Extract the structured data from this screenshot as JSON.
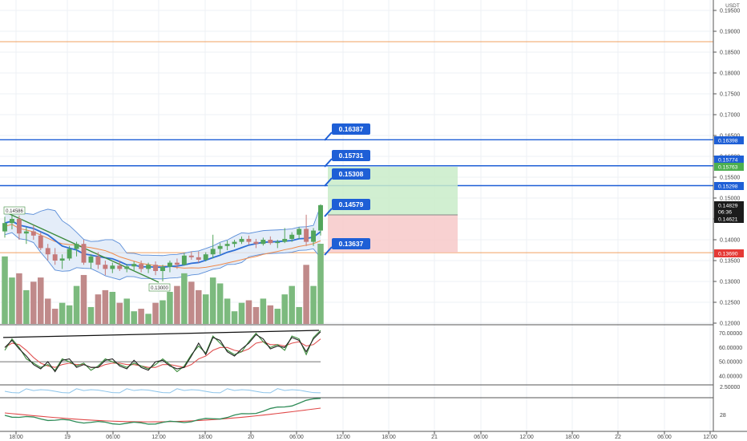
{
  "header": {
    "currency": "USDT"
  },
  "colors": {
    "up": "#53a55b",
    "down": "#c57a7a",
    "vol_up": "#7cba7e",
    "vol_down": "#c08a8a",
    "blue_line": "#1e5fd6",
    "orange_line": "#f0a060",
    "grid": "#eef1f4",
    "bb_fill": "#dde9f7",
    "bb_line": "#5b8ed8",
    "ma_blue": "#2f6fd6",
    "ma_orange": "#f08a4b",
    "trend_green": "#3b8a3b",
    "target_zone": "#c9ecc9",
    "stop_zone": "#f7c9c9",
    "label_blue": "#1e5fd6",
    "label_dark": "#1b1b1b",
    "label_green": "#4caf50",
    "label_red": "#e53935"
  },
  "right_axis": {
    "ticks": [
      "0.19500",
      "0.19000",
      "0.18500",
      "0.18000",
      "0.17500",
      "0.17000",
      "0.16500",
      "0.16000",
      "0.15500",
      "0.15000",
      "0.14500",
      "0.14000",
      "0.13500",
      "0.13000",
      "0.12500",
      "0.12000"
    ],
    "tags": [
      {
        "text": "0.16398",
        "style": "blue"
      },
      {
        "text": "0.15774",
        "style": "blue"
      },
      {
        "text": "0.15763",
        "style": "green"
      },
      {
        "text": "0.15298",
        "style": "blue"
      },
      {
        "text": "0.14829",
        "style": "dark"
      },
      {
        "text": "06:36",
        "style": "dark"
      },
      {
        "text": "0.14621",
        "style": "dark"
      },
      {
        "text": "0.13690",
        "style": "red"
      }
    ]
  },
  "price_labels": [
    {
      "text": "0.16387"
    },
    {
      "text": "0.15731"
    },
    {
      "text": "0.15308"
    },
    {
      "text": "0.14579"
    },
    {
      "text": "0.13637"
    }
  ],
  "chart_annotations": [
    {
      "text": "0.14586"
    },
    {
      "text": "0.13000"
    }
  ],
  "oscillator_axis": {
    "ticks": [
      "70.00000",
      "60.00000",
      "50.00000",
      "40.00000"
    ]
  },
  "indicator2_axis": {
    "ticks": [
      "2.50000"
    ]
  },
  "indicator3_axis": {
    "ticks": [
      "28"
    ]
  },
  "time_axis": {
    "labels": [
      "18:00",
      "19",
      "06:00",
      "12:00",
      "18:00",
      "20",
      "06:00",
      "12:00",
      "18:00",
      "21",
      "06:00",
      "12:00",
      "18:00",
      "22",
      "06:00",
      "12:00"
    ]
  },
  "chart_data": {
    "type": "candlestick",
    "price_unit": "USDT",
    "y_ticks": [
      0.195,
      0.19,
      0.185,
      0.18,
      0.175,
      0.17,
      0.165,
      0.16,
      0.155,
      0.15,
      0.145,
      0.14,
      0.135,
      0.13,
      0.125,
      0.12
    ],
    "ohlc": [
      [
        0.142,
        0.1455,
        0.1405,
        0.144
      ],
      [
        0.144,
        0.1458,
        0.1425,
        0.145
      ],
      [
        0.145,
        0.1458,
        0.14,
        0.1415
      ],
      [
        0.1415,
        0.143,
        0.139,
        0.142
      ],
      [
        0.142,
        0.1435,
        0.14,
        0.141
      ],
      [
        0.141,
        0.1418,
        0.1375,
        0.138
      ],
      [
        0.138,
        0.139,
        0.135,
        0.1365
      ],
      [
        0.1365,
        0.138,
        0.134,
        0.135
      ],
      [
        0.135,
        0.1365,
        0.133,
        0.1355
      ],
      [
        0.1355,
        0.1385,
        0.135,
        0.1378
      ],
      [
        0.1378,
        0.1395,
        0.136,
        0.139
      ],
      [
        0.139,
        0.14,
        0.134,
        0.1345
      ],
      [
        0.1345,
        0.1365,
        0.133,
        0.136
      ],
      [
        0.136,
        0.137,
        0.133,
        0.134
      ],
      [
        0.134,
        0.135,
        0.1315,
        0.133
      ],
      [
        0.133,
        0.1345,
        0.132,
        0.1338
      ],
      [
        0.1338,
        0.135,
        0.1325,
        0.133
      ],
      [
        0.133,
        0.1342,
        0.1322,
        0.1336
      ],
      [
        0.1336,
        0.1348,
        0.1325,
        0.1342
      ],
      [
        0.1342,
        0.135,
        0.1322,
        0.133
      ],
      [
        0.133,
        0.1345,
        0.132,
        0.134
      ],
      [
        0.134,
        0.1348,
        0.1315,
        0.1325
      ],
      [
        0.1325,
        0.134,
        0.13,
        0.1335
      ],
      [
        0.1335,
        0.135,
        0.1322,
        0.1345
      ],
      [
        0.1345,
        0.1355,
        0.133,
        0.134
      ],
      [
        0.134,
        0.1368,
        0.1338,
        0.1362
      ],
      [
        0.1362,
        0.1372,
        0.1352,
        0.1358
      ],
      [
        0.1358,
        0.1372,
        0.1345,
        0.1352
      ],
      [
        0.1352,
        0.137,
        0.1348,
        0.1365
      ],
      [
        0.1365,
        0.1412,
        0.1355,
        0.1378
      ],
      [
        0.1378,
        0.1392,
        0.1365,
        0.1385
      ],
      [
        0.1385,
        0.1398,
        0.1375,
        0.139
      ],
      [
        0.139,
        0.14,
        0.1382,
        0.1395
      ],
      [
        0.1395,
        0.1408,
        0.139,
        0.1402
      ],
      [
        0.1402,
        0.141,
        0.1388,
        0.1395
      ],
      [
        0.1395,
        0.1402,
        0.138,
        0.139
      ],
      [
        0.139,
        0.1405,
        0.1386,
        0.14
      ],
      [
        0.14,
        0.1408,
        0.1388,
        0.1392
      ],
      [
        0.1392,
        0.14,
        0.138,
        0.1395
      ],
      [
        0.1395,
        0.1428,
        0.1392,
        0.1402
      ],
      [
        0.1402,
        0.1418,
        0.1395,
        0.1412
      ],
      [
        0.1412,
        0.143,
        0.1402,
        0.1426
      ],
      [
        0.1426,
        0.146,
        0.1385,
        0.1395
      ],
      [
        0.1395,
        0.1428,
        0.1385,
        0.1422
      ],
      [
        0.1422,
        0.1485,
        0.141,
        0.1483
      ]
    ],
    "volume": [
      80,
      55,
      60,
      40,
      50,
      55,
      30,
      18,
      25,
      22,
      45,
      58,
      20,
      35,
      40,
      38,
      25,
      30,
      15,
      18,
      12,
      25,
      28,
      38,
      45,
      60,
      50,
      40,
      35,
      55,
      48,
      30,
      15,
      25,
      28,
      20,
      30,
      22,
      18,
      35,
      45,
      20,
      70,
      45,
      95
    ],
    "horizontal_lines": [
      {
        "price": 0.16398,
        "color": "blue"
      },
      {
        "price": 0.15774,
        "color": "blue"
      },
      {
        "price": 0.15298,
        "color": "blue"
      },
      {
        "price": 0.1369,
        "color": "orange"
      },
      {
        "price": 0.1875,
        "color": "orange"
      }
    ],
    "target_zone": {
      "from": 0.14621,
      "to": 0.15763
    },
    "stop_zone": {
      "from": 0.1369,
      "to": 0.14621
    }
  }
}
